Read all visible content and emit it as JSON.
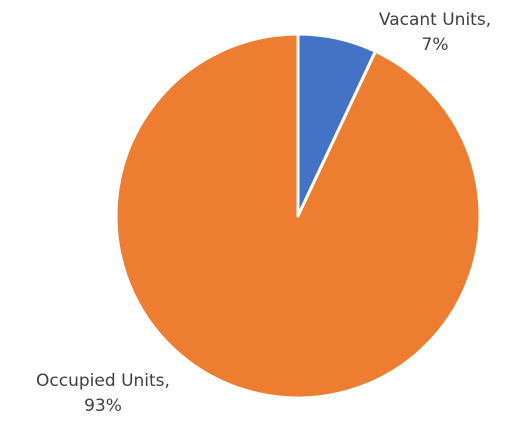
{
  "chart_data": {
    "type": "pie",
    "categories": [
      "Vacant Units,",
      "Occupied Units,"
    ],
    "values": [
      7,
      93
    ],
    "value_labels": [
      "7%",
      "93%"
    ],
    "colors": [
      "#4472c4",
      "#ed7d31"
    ]
  }
}
